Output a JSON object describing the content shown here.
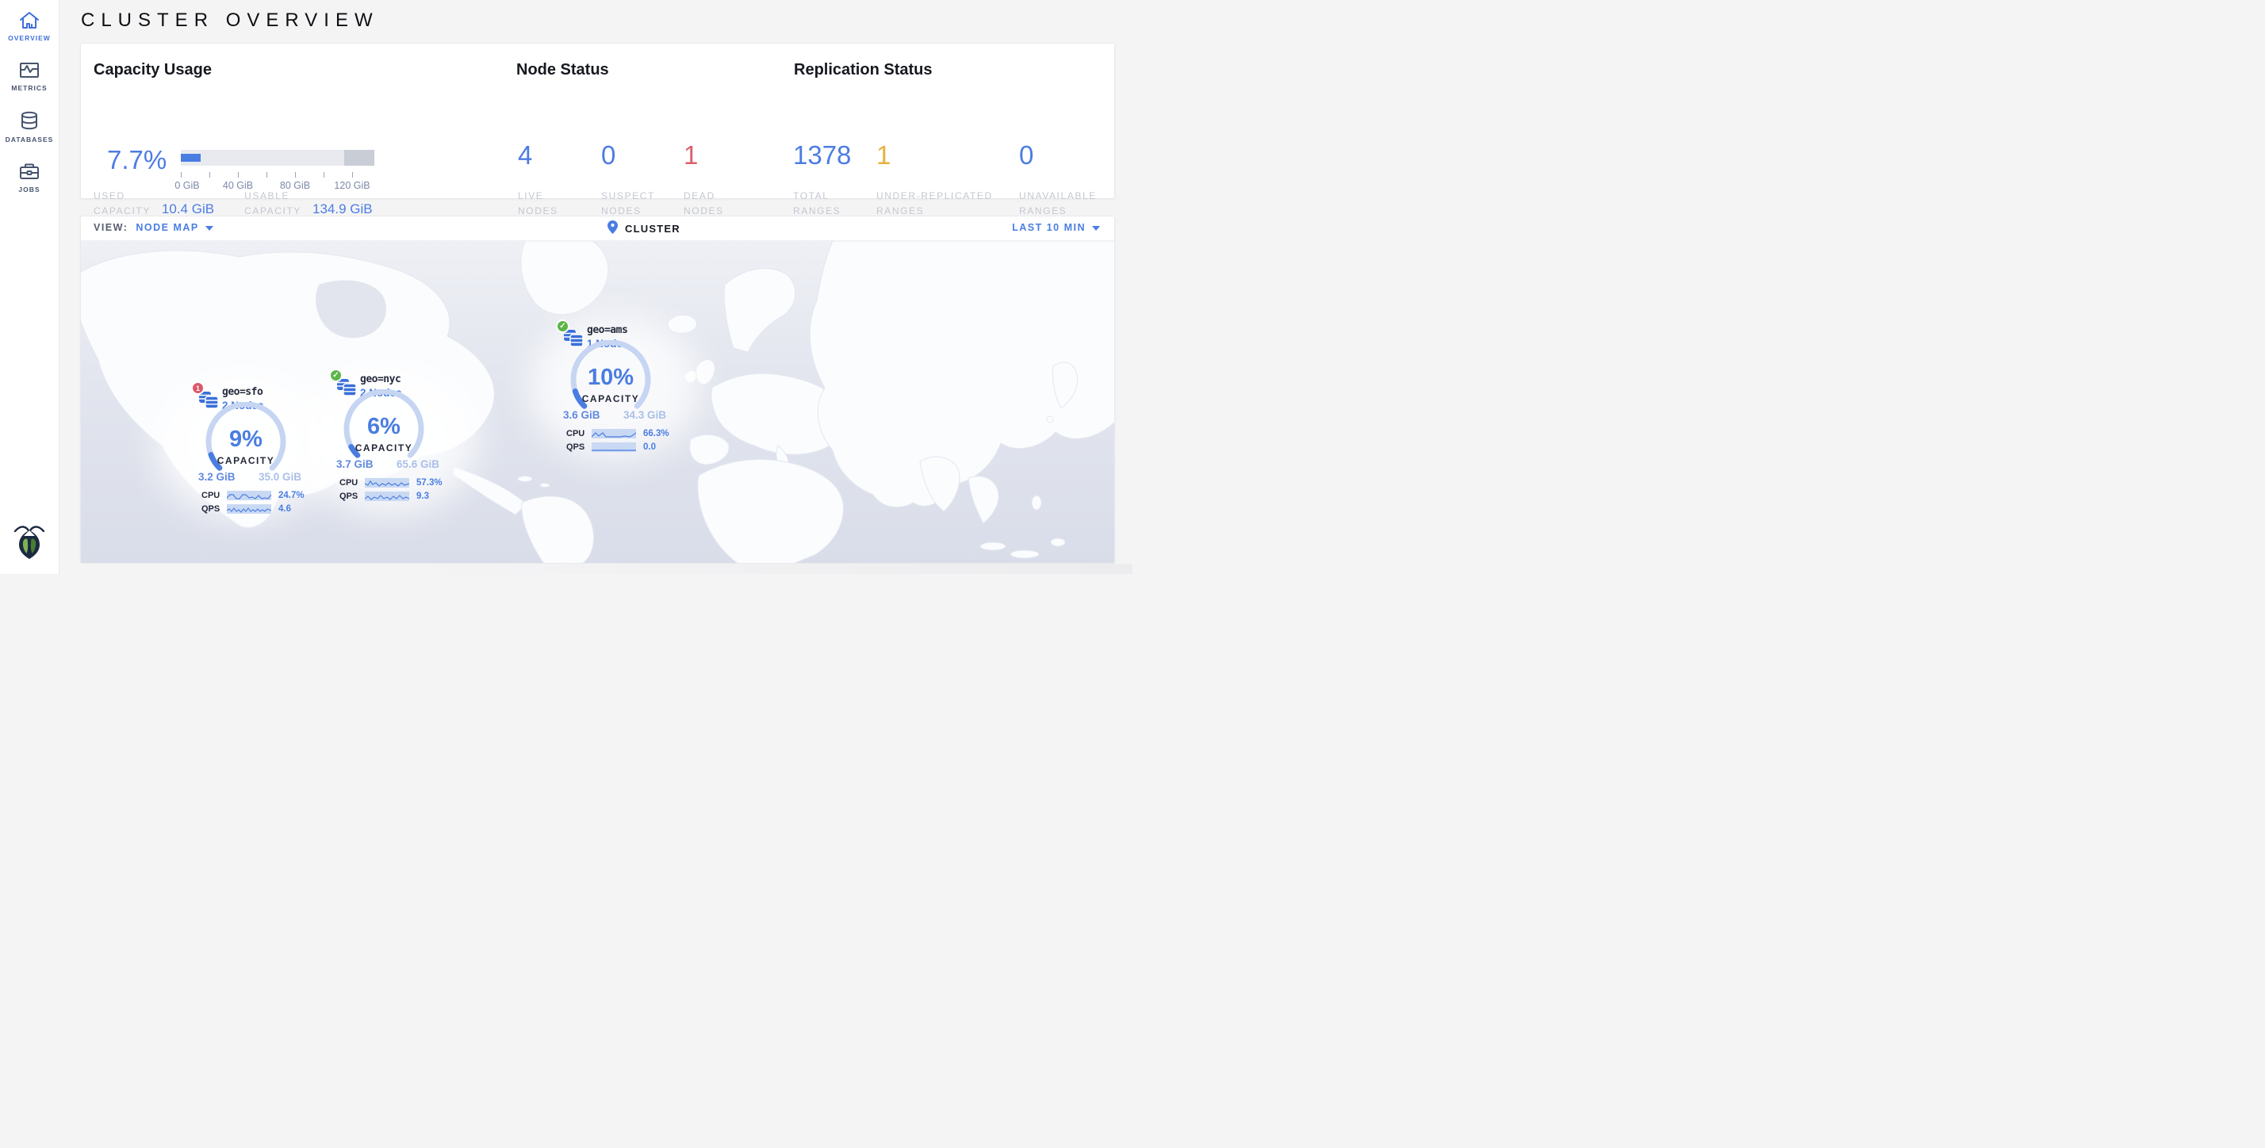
{
  "page_title": "CLUSTER OVERVIEW",
  "sidebar": {
    "items": [
      {
        "label": "OVERVIEW",
        "icon": "home-icon",
        "active": true
      },
      {
        "label": "METRICS",
        "icon": "metrics-icon",
        "active": false
      },
      {
        "label": "DATABASES",
        "icon": "database-icon",
        "active": false
      },
      {
        "label": "JOBS",
        "icon": "briefcase-icon",
        "active": false
      }
    ],
    "logo": "cockroachdb-logo"
  },
  "stats": {
    "capacity": {
      "title": "Capacity Usage",
      "percent": 7.7,
      "percent_label": "7.7%",
      "ticks": [
        "0 GiB",
        "40 GiB",
        "80 GiB",
        "120 GiB"
      ],
      "used_label_1": "USED",
      "used_label_2": "CAPACITY",
      "used_value": "10.4 GiB",
      "usable_label_1": "USABLE",
      "usable_label_2": "CAPACITY",
      "usable_value": "134.9 GiB"
    },
    "nodes": {
      "title": "Node Status",
      "items": [
        {
          "value": "4",
          "label1": "LIVE",
          "label2": "NODES",
          "color": "#4d7ce2"
        },
        {
          "value": "0",
          "label1": "SUSPECT",
          "label2": "NODES",
          "color": "#4d7ce2"
        },
        {
          "value": "1",
          "label1": "DEAD",
          "label2": "NODES",
          "color": "#de5f6c"
        }
      ]
    },
    "replication": {
      "title": "Replication Status",
      "items": [
        {
          "value": "1378",
          "label1": "TOTAL",
          "label2": "RANGES",
          "color": "#4d7ce2"
        },
        {
          "value": "1",
          "label1": "UNDER-REPLICATED",
          "label2": "RANGES",
          "color": "#e5b23e"
        },
        {
          "value": "0",
          "label1": "UNAVAILABLE",
          "label2": "RANGES",
          "color": "#4d7ce2"
        }
      ]
    }
  },
  "map_bar": {
    "view_label": "VIEW:",
    "view_value": "NODE MAP",
    "breadcrumb": "CLUSTER",
    "time_range": "LAST 10 MIN"
  },
  "map": {
    "localities": [
      {
        "badge": "dead-count",
        "badge_count": "1",
        "name": "geo=sfo",
        "nodes_label": "2 Nodes",
        "capacity_pct": 9,
        "capacity_pct_label": "9%",
        "capacity_caption": "CAPACITY",
        "used": "3.2 GiB",
        "total": "35.0 GiB",
        "cpu_label": "CPU",
        "cpu_value": "24.7%",
        "qps_label": "QPS",
        "qps_value": "4.6"
      },
      {
        "badge": "healthy-check",
        "badge_count": "",
        "name": "geo=nyc",
        "nodes_label": "2 Nodes",
        "capacity_pct": 6,
        "capacity_pct_label": "6%",
        "capacity_caption": "CAPACITY",
        "used": "3.7 GiB",
        "total": "65.6 GiB",
        "cpu_label": "CPU",
        "cpu_value": "57.3%",
        "qps_label": "QPS",
        "qps_value": "9.3"
      },
      {
        "badge": "healthy-check",
        "badge_count": "",
        "name": "geo=ams",
        "nodes_label": "1 Node",
        "capacity_pct": 10,
        "capacity_pct_label": "10%",
        "capacity_caption": "CAPACITY",
        "used": "3.6 GiB",
        "total": "34.3 GiB",
        "cpu_label": "CPU",
        "cpu_value": "66.3%",
        "qps_label": "QPS",
        "qps_value": "0.0"
      }
    ]
  },
  "colors": {
    "accent_blue": "#4a7de2",
    "dead_red": "#de5f6c",
    "warning_amber": "#e5b23e",
    "label_gray": "#c3c7d0",
    "gauge_track": "#c5d5f2",
    "ocean": "#dfe2ec",
    "land": "#fbfcfe",
    "healthy_green": "#5cb547"
  }
}
